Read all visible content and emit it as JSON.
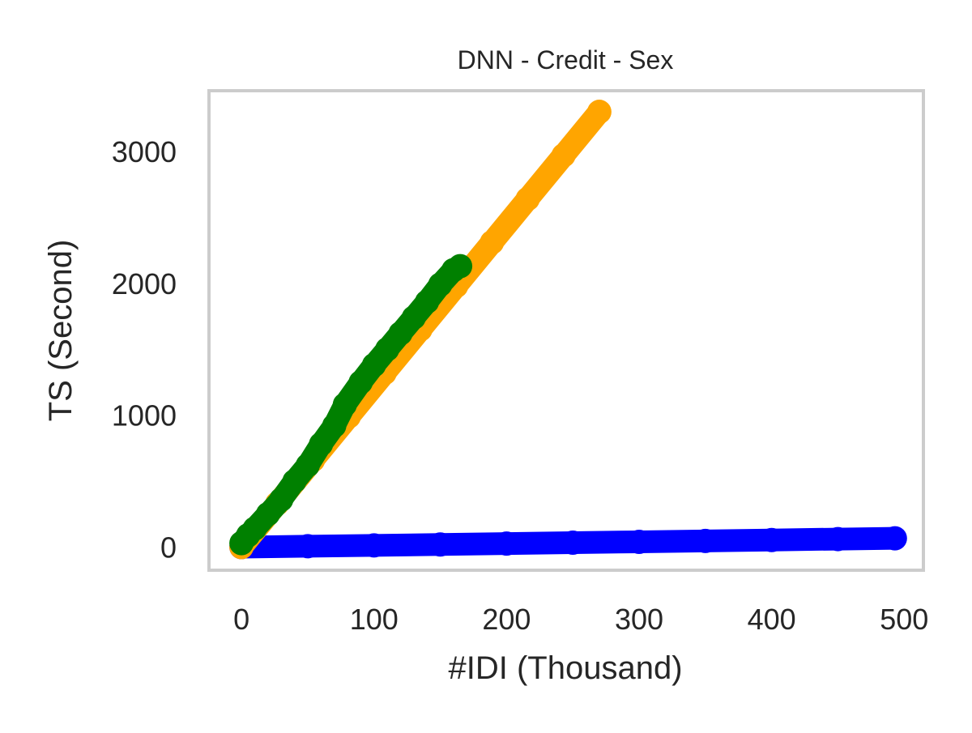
{
  "chart_data": {
    "type": "scatter",
    "title": "DNN - Credit - Sex",
    "xlabel": "#IDI (Thousand)",
    "ylabel": "TS (Second)",
    "xlim": [
      -24.5,
      514.5
    ],
    "ylim": [
      -175,
      3460
    ],
    "xticks": [
      0,
      100,
      200,
      300,
      400,
      500
    ],
    "yticks": [
      0,
      1000,
      2000,
      3000
    ],
    "xtick_labels": [
      "0",
      "100",
      "200",
      "300",
      "400",
      "500"
    ],
    "ytick_labels": [
      "0",
      "1000",
      "2000",
      "3000"
    ],
    "grid": false,
    "series": [
      {
        "color": "#0000ff",
        "points": [
          [
            0,
            0
          ],
          [
            50,
            7
          ],
          [
            100,
            13
          ],
          [
            150,
            20
          ],
          [
            200,
            27
          ],
          [
            250,
            34
          ],
          [
            300,
            40
          ],
          [
            350,
            47
          ],
          [
            400,
            54
          ],
          [
            450,
            61
          ],
          [
            493,
            67
          ]
        ]
      },
      {
        "color": "#ffa500",
        "points": [
          [
            0,
            0
          ],
          [
            27,
            330
          ],
          [
            54,
            660
          ],
          [
            81,
            990
          ],
          [
            108,
            1320
          ],
          [
            135,
            1650
          ],
          [
            162,
            1980
          ],
          [
            189,
            2310
          ],
          [
            216,
            2640
          ],
          [
            243,
            2970
          ],
          [
            270,
            3300
          ]
        ]
      },
      {
        "color": "#008000",
        "points": [
          [
            0,
            30
          ],
          [
            5,
            90
          ],
          [
            10,
            140
          ],
          [
            20,
            250
          ],
          [
            30,
            360
          ],
          [
            40,
            500
          ],
          [
            50,
            620
          ],
          [
            60,
            780
          ],
          [
            70,
            920
          ],
          [
            78,
            1080
          ],
          [
            90,
            1250
          ],
          [
            100,
            1380
          ],
          [
            110,
            1500
          ],
          [
            120,
            1620
          ],
          [
            130,
            1740
          ],
          [
            140,
            1860
          ],
          [
            150,
            1990
          ],
          [
            160,
            2100
          ],
          [
            165,
            2130
          ]
        ]
      }
    ]
  }
}
